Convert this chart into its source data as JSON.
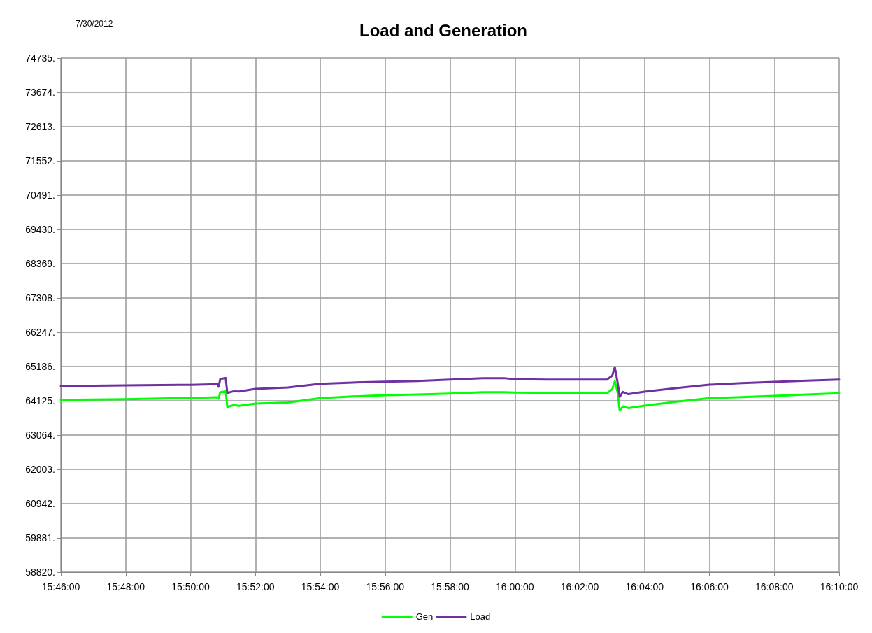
{
  "chart_data": {
    "type": "line",
    "title": "Load and Generation",
    "annotations": [
      "7/30/2012"
    ],
    "x": [
      "2012-07-30T15:46:00",
      "2012-07-30T15:48:00",
      "2012-07-30T15:50:00",
      "2012-07-30T15:50:50",
      "2012-07-30T15:50:52",
      "2012-07-30T15:50:55",
      "2012-07-30T15:51:05",
      "2012-07-30T15:51:08",
      "2012-07-30T15:51:20",
      "2012-07-30T15:51:30",
      "2012-07-30T15:52:00",
      "2012-07-30T15:53:00",
      "2012-07-30T15:54:00",
      "2012-07-30T15:55:00",
      "2012-07-30T15:56:00",
      "2012-07-30T15:57:00",
      "2012-07-30T15:58:00",
      "2012-07-30T15:59:00",
      "2012-07-30T15:59:40",
      "2012-07-30T16:00:00",
      "2012-07-30T16:01:00",
      "2012-07-30T16:02:00",
      "2012-07-30T16:02:50",
      "2012-07-30T16:03:00",
      "2012-07-30T16:03:05",
      "2012-07-30T16:03:10",
      "2012-07-30T16:03:14",
      "2012-07-30T16:03:20",
      "2012-07-30T16:03:30",
      "2012-07-30T16:04:00",
      "2012-07-30T16:05:00",
      "2012-07-30T16:06:00",
      "2012-07-30T16:07:00",
      "2012-07-30T16:08:00",
      "2012-07-30T16:09:00",
      "2012-07-30T16:10:00"
    ],
    "series": [
      {
        "name": "Gen",
        "color": "#00ff00",
        "values": [
          64153,
          64175,
          64210,
          64233,
          64190,
          64391,
          64420,
          63937,
          63990,
          63970,
          64040,
          64070,
          64205,
          64260,
          64298,
          64320,
          64348,
          64391,
          64391,
          64378,
          64370,
          64357,
          64357,
          64480,
          64731,
          64400,
          63828,
          63950,
          63900,
          63973,
          64100,
          64205,
          64240,
          64277,
          64320,
          64357
        ]
      },
      {
        "name": "Load",
        "color": "#7030a0",
        "values": [
          64580,
          64600,
          64620,
          64640,
          64560,
          64803,
          64830,
          64370,
          64420,
          64410,
          64493,
          64537,
          64650,
          64690,
          64716,
          64735,
          64781,
          64824,
          64826,
          64789,
          64780,
          64781,
          64781,
          64900,
          65164,
          64700,
          64248,
          64400,
          64330,
          64406,
          64520,
          64623,
          64670,
          64710,
          64750,
          64781
        ]
      }
    ],
    "xlim": [
      "2012-07-30T15:46:00",
      "2012-07-30T16:10:00"
    ],
    "xticks": [
      {
        "value": "2012-07-30T15:46:00",
        "label": "15:46:00"
      },
      {
        "value": "2012-07-30T15:48:00",
        "label": "15:48:00"
      },
      {
        "value": "2012-07-30T15:50:00",
        "label": "15:50:00"
      },
      {
        "value": "2012-07-30T15:52:00",
        "label": "15:52:00"
      },
      {
        "value": "2012-07-30T15:54:00",
        "label": "15:54:00"
      },
      {
        "value": "2012-07-30T15:56:00",
        "label": "15:56:00"
      },
      {
        "value": "2012-07-30T15:58:00",
        "label": "15:58:00"
      },
      {
        "value": "2012-07-30T16:00:00",
        "label": "16:00:00"
      },
      {
        "value": "2012-07-30T16:02:00",
        "label": "16:02:00"
      },
      {
        "value": "2012-07-30T16:04:00",
        "label": "16:04:00"
      },
      {
        "value": "2012-07-30T16:06:00",
        "label": "16:06:00"
      },
      {
        "value": "2012-07-30T16:08:00",
        "label": "16:08:00"
      },
      {
        "value": "2012-07-30T16:10:00",
        "label": "16:10:00"
      }
    ],
    "ylim": [
      58820,
      74735
    ],
    "yticks": [
      {
        "value": 58820,
        "label": "58820."
      },
      {
        "value": 59881,
        "label": "59881."
      },
      {
        "value": 60942,
        "label": "60942."
      },
      {
        "value": 62003,
        "label": "62003."
      },
      {
        "value": 63064,
        "label": "63064."
      },
      {
        "value": 64125,
        "label": "64125."
      },
      {
        "value": 65186,
        "label": "65186."
      },
      {
        "value": 66247,
        "label": "66247."
      },
      {
        "value": 67308,
        "label": "67308."
      },
      {
        "value": 68369,
        "label": "68369."
      },
      {
        "value": 69430,
        "label": "69430."
      },
      {
        "value": 70491,
        "label": "70491."
      },
      {
        "value": 71552,
        "label": "71552."
      },
      {
        "value": 72613,
        "label": "72613."
      },
      {
        "value": 73674,
        "label": "73674."
      },
      {
        "value": 74735,
        "label": "74735."
      }
    ],
    "grid": true,
    "legend": "bottom",
    "marker": "none",
    "line_style": "solid"
  }
}
